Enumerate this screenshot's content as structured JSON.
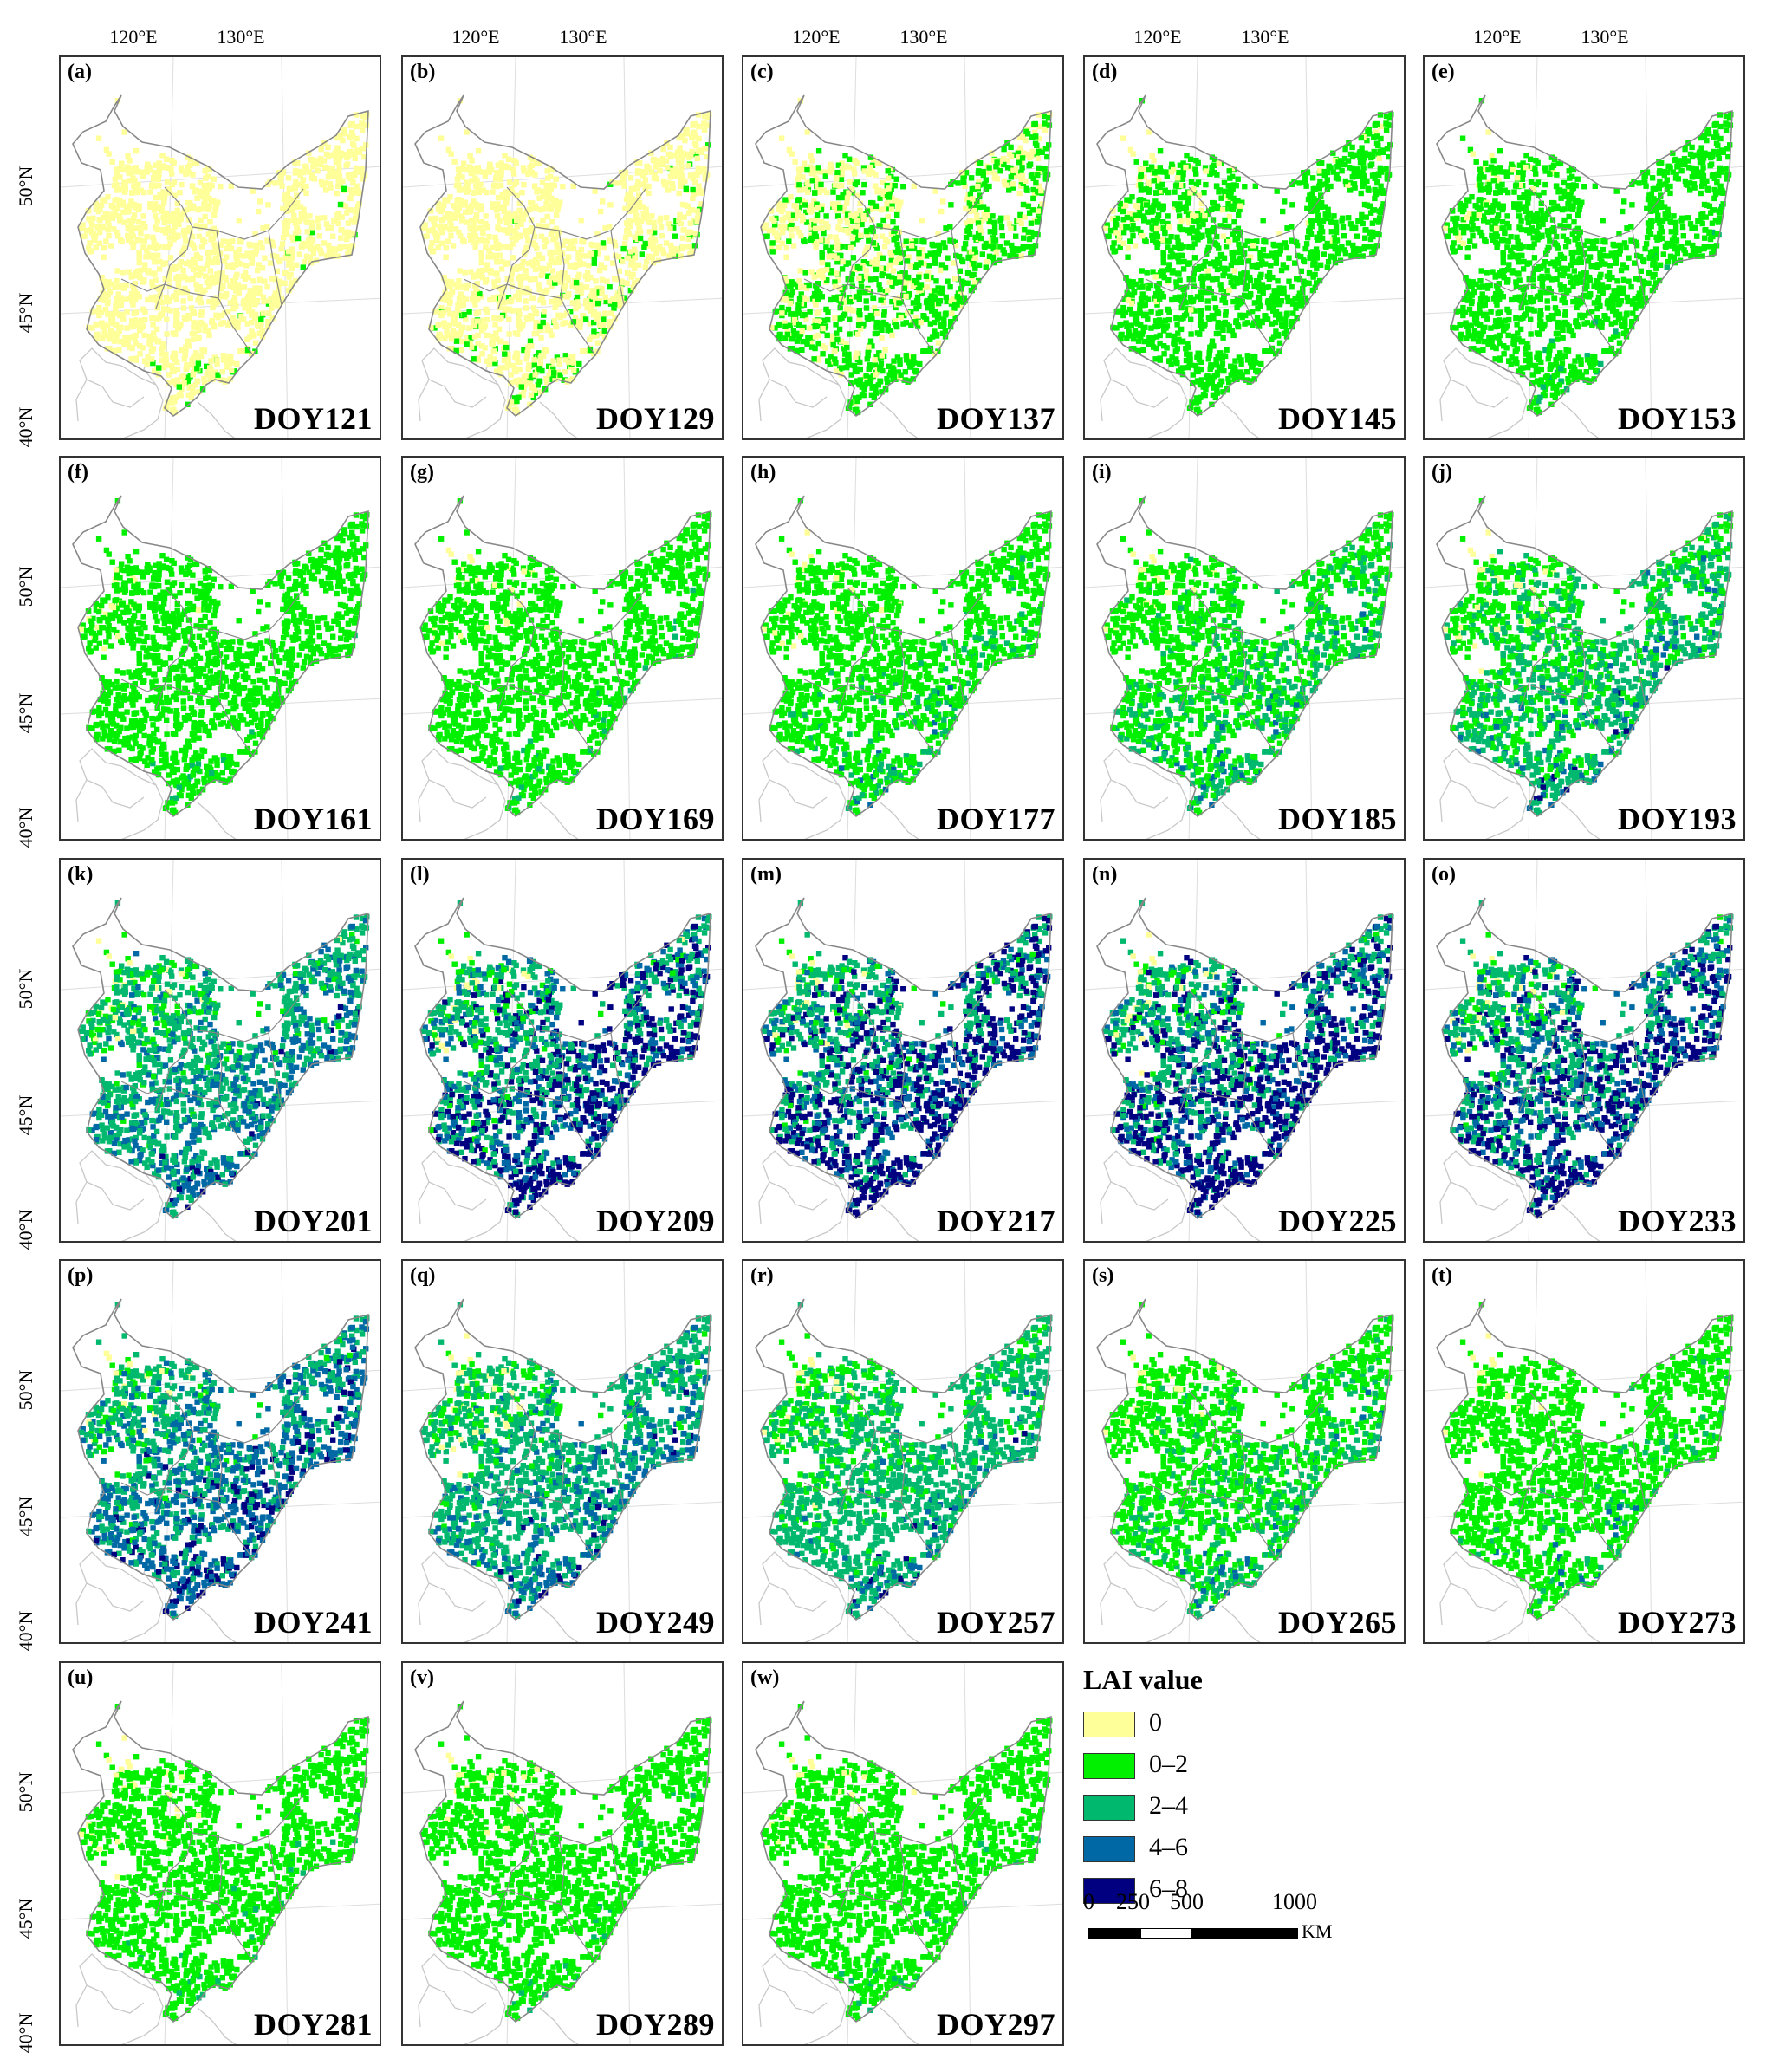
{
  "lon_labels": [
    "120°E",
    "130°E"
  ],
  "lat_labels": [
    "50°N",
    "45°N",
    "40°N"
  ],
  "panels": [
    {
      "label": "(a)",
      "doy": "DOY121",
      "fill": [
        0.92,
        0.05,
        0.0,
        0.0,
        0.0
      ]
    },
    {
      "label": "(b)",
      "doy": "DOY129",
      "fill": [
        0.78,
        0.18,
        0.0,
        0.0,
        0.0
      ]
    },
    {
      "label": "(c)",
      "doy": "DOY137",
      "fill": [
        0.4,
        0.55,
        0.0,
        0.0,
        0.0
      ]
    },
    {
      "label": "(d)",
      "doy": "DOY145",
      "fill": [
        0.15,
        0.8,
        0.0,
        0.0,
        0.0
      ]
    },
    {
      "label": "(e)",
      "doy": "DOY153",
      "fill": [
        0.0,
        0.95,
        0.02,
        0.0,
        0.0
      ]
    },
    {
      "label": "(f)",
      "doy": "DOY161",
      "fill": [
        0.0,
        0.95,
        0.03,
        0.0,
        0.0
      ]
    },
    {
      "label": "(g)",
      "doy": "DOY169",
      "fill": [
        0.0,
        0.92,
        0.06,
        0.0,
        0.0
      ]
    },
    {
      "label": "(h)",
      "doy": "DOY177",
      "fill": [
        0.0,
        0.8,
        0.17,
        0.02,
        0.0
      ]
    },
    {
      "label": "(i)",
      "doy": "DOY185",
      "fill": [
        0.0,
        0.62,
        0.33,
        0.04,
        0.0
      ]
    },
    {
      "label": "(j)",
      "doy": "DOY193",
      "fill": [
        0.0,
        0.45,
        0.38,
        0.15,
        0.01
      ]
    },
    {
      "label": "(k)",
      "doy": "DOY201",
      "fill": [
        0.0,
        0.2,
        0.4,
        0.35,
        0.04
      ]
    },
    {
      "label": "(l)",
      "doy": "DOY209",
      "fill": [
        0.0,
        0.15,
        0.3,
        0.15,
        0.4
      ]
    },
    {
      "label": "(m)",
      "doy": "DOY217",
      "fill": [
        0.0,
        0.12,
        0.3,
        0.13,
        0.45
      ]
    },
    {
      "label": "(n)",
      "doy": "DOY225",
      "fill": [
        0.0,
        0.12,
        0.3,
        0.13,
        0.45
      ]
    },
    {
      "label": "(o)",
      "doy": "DOY233",
      "fill": [
        0.0,
        0.12,
        0.32,
        0.16,
        0.4
      ]
    },
    {
      "label": "(p)",
      "doy": "DOY241",
      "fill": [
        0.0,
        0.12,
        0.35,
        0.33,
        0.2
      ]
    },
    {
      "label": "(q)",
      "doy": "DOY249",
      "fill": [
        0.0,
        0.2,
        0.45,
        0.28,
        0.07
      ]
    },
    {
      "label": "(r)",
      "doy": "DOY257",
      "fill": [
        0.0,
        0.3,
        0.55,
        0.13,
        0.02
      ]
    },
    {
      "label": "(s)",
      "doy": "DOY265",
      "fill": [
        0.0,
        0.65,
        0.3,
        0.05,
        0.0
      ]
    },
    {
      "label": "(t)",
      "doy": "DOY273",
      "fill": [
        0.0,
        0.85,
        0.13,
        0.02,
        0.0
      ]
    },
    {
      "label": "(u)",
      "doy": "DOY281",
      "fill": [
        0.0,
        0.95,
        0.04,
        0.0,
        0.0
      ]
    },
    {
      "label": "(v)",
      "doy": "DOY289",
      "fill": [
        0.0,
        0.95,
        0.04,
        0.0,
        0.0
      ]
    },
    {
      "label": "(w)",
      "doy": "DOY297",
      "fill": [
        0.0,
        0.95,
        0.04,
        0.0,
        0.0
      ]
    }
  ],
  "legend": {
    "title": "LAI value",
    "items": [
      {
        "label": "0",
        "color": "#FFFF99"
      },
      {
        "label": "0–2",
        "color": "#00F000"
      },
      {
        "label": "2–4",
        "color": "#00B96E"
      },
      {
        "label": "4–6",
        "color": "#0069A5"
      },
      {
        "label": "6–8",
        "color": "#000080"
      }
    ]
  },
  "scalebar": {
    "ticks": [
      "0",
      "250",
      "500",
      "1000"
    ],
    "unit": "KM"
  },
  "colors": {
    "boundary": "#888888",
    "outside_boundary": "#c8c8c8",
    "frame": "#333333"
  }
}
